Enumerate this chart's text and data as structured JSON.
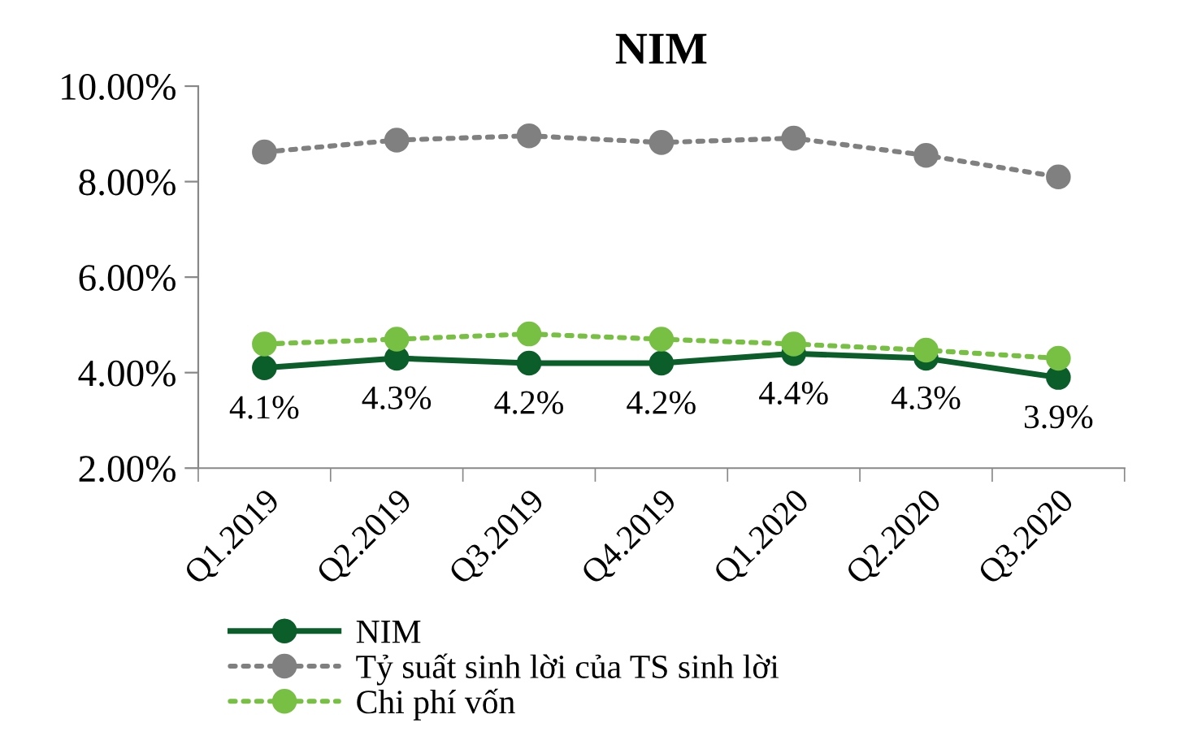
{
  "chart_data": {
    "type": "line",
    "title": "NIM",
    "categories": [
      "Q1.2019",
      "Q2.2019",
      "Q3.2019",
      "Q4.2019",
      "Q1.2020",
      "Q2.2020",
      "Q3.2020"
    ],
    "series": [
      {
        "name": "NIM",
        "color": "#0b5e2a",
        "line_style": "solid",
        "values": [
          4.1,
          4.3,
          4.2,
          4.2,
          4.4,
          4.3,
          3.9
        ],
        "value_labels": [
          "4.1%",
          "4.3%",
          "4.2%",
          "4.2%",
          "4.4%",
          "4.3%",
          "3.9%"
        ]
      },
      {
        "name": "Tỷ suất sinh lời của TS sinh lời",
        "color": "#808080",
        "line_style": "dotted",
        "values": [
          8.62,
          8.87,
          8.96,
          8.82,
          8.91,
          8.55,
          8.1
        ]
      },
      {
        "name": "Chi phí vốn",
        "color": "#77c043",
        "line_style": "dotted",
        "values": [
          4.6,
          4.7,
          4.81,
          4.7,
          4.6,
          4.47,
          4.3
        ]
      }
    ],
    "ylim": [
      2,
      10
    ],
    "yticks": [
      {
        "value": 2,
        "label": "2.00%"
      },
      {
        "value": 4,
        "label": "4.00%"
      },
      {
        "value": 6,
        "label": "6.00%"
      },
      {
        "value": 8,
        "label": "8.00%"
      },
      {
        "value": 10,
        "label": "10.00%"
      }
    ],
    "marker": "circle",
    "grid": false,
    "legend": "bottom"
  }
}
